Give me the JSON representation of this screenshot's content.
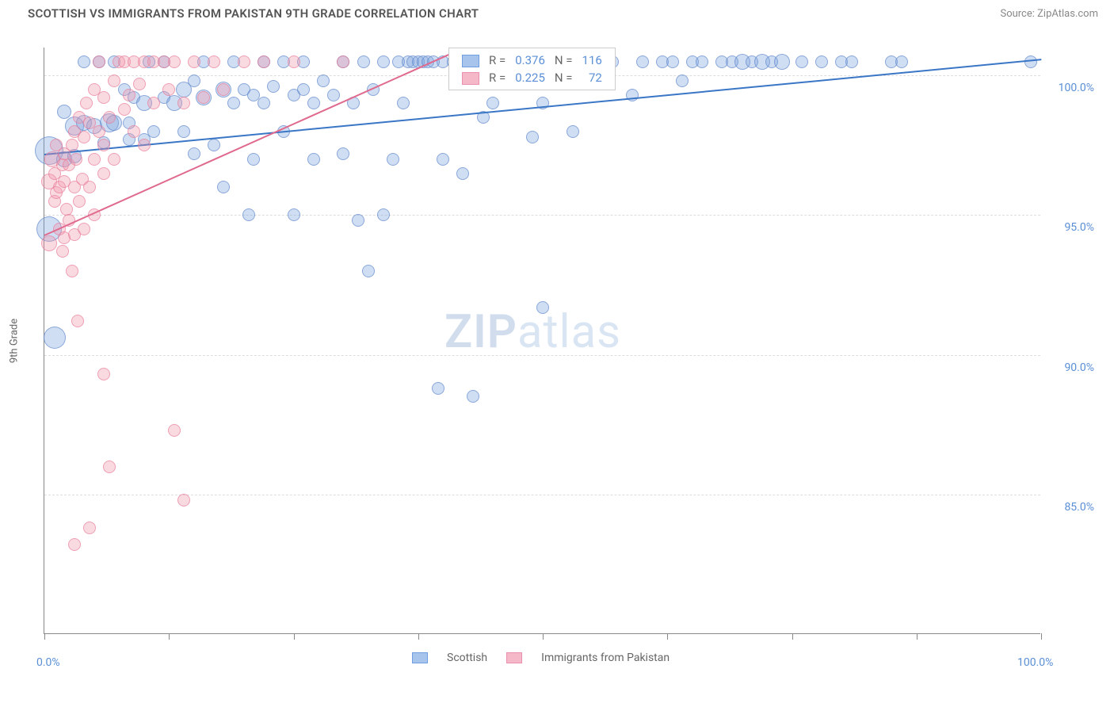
{
  "title": "SCOTTISH VS IMMIGRANTS FROM PAKISTAN 9TH GRADE CORRELATION CHART",
  "source_label": "Source: ZipAtlas.com",
  "watermark_zip": "ZIP",
  "watermark_atlas": "atlas",
  "chart": {
    "type": "scatter",
    "y_label": "9th Grade",
    "x_range": [
      0,
      100
    ],
    "y_range": [
      80,
      101
    ],
    "background_color": "#ffffff",
    "grid_color": "#dddddd",
    "axis_color": "#888888",
    "tick_label_color": "#5b8fd6",
    "axis_label_color": "#666666",
    "y_ticks": [
      {
        "value": 85.0,
        "label": "85.0%"
      },
      {
        "value": 90.0,
        "label": "90.0%"
      },
      {
        "value": 95.0,
        "label": "95.0%"
      },
      {
        "value": 100.0,
        "label": "100.0%"
      }
    ],
    "x_ticks_major_positions": [
      0,
      12.5,
      25,
      37.5,
      50,
      62.5,
      75,
      87.5,
      100
    ],
    "x_tick_labels": [
      {
        "value": 0,
        "label": "0.0%"
      },
      {
        "value": 100,
        "label": "100.0%"
      }
    ],
    "series": [
      {
        "name": "Scottish",
        "color_fill": "rgba(120,160,220,0.35)",
        "color_stroke": "rgba(90,130,200,0.6)",
        "legend_fill": "#a7c4ec",
        "legend_stroke": "#6f9fe0",
        "trend_color": "#3a76c6",
        "trend": {
          "x1": 0,
          "y1": 97.2,
          "x2": 100,
          "y2": 100.6
        },
        "stats": {
          "R_label": "R =",
          "R": "0.376",
          "N_label": "N =",
          "N": "116"
        },
        "points": [
          {
            "x": 0.5,
            "y": 97.3,
            "r": 18
          },
          {
            "x": 0.5,
            "y": 94.5,
            "r": 16
          },
          {
            "x": 1.0,
            "y": 90.6,
            "r": 14
          },
          {
            "x": 2,
            "y": 97.0,
            "r": 10
          },
          {
            "x": 2,
            "y": 98.7,
            "r": 9
          },
          {
            "x": 3,
            "y": 97.1,
            "r": 9
          },
          {
            "x": 3,
            "y": 98.2,
            "r": 12
          },
          {
            "x": 4,
            "y": 98.3,
            "r": 10
          },
          {
            "x": 4,
            "y": 100.5,
            "r": 8
          },
          {
            "x": 5,
            "y": 98.2,
            "r": 10
          },
          {
            "x": 5.5,
            "y": 100.5,
            "r": 8
          },
          {
            "x": 6,
            "y": 97.6,
            "r": 8
          },
          {
            "x": 6.5,
            "y": 98.3,
            "r": 12
          },
          {
            "x": 7,
            "y": 98.3,
            "r": 10
          },
          {
            "x": 7,
            "y": 100.5,
            "r": 8
          },
          {
            "x": 8,
            "y": 99.5,
            "r": 8
          },
          {
            "x": 8.5,
            "y": 97.7,
            "r": 8
          },
          {
            "x": 8.5,
            "y": 98.3,
            "r": 8
          },
          {
            "x": 9,
            "y": 99.2,
            "r": 8
          },
          {
            "x": 10,
            "y": 99.0,
            "r": 10
          },
          {
            "x": 10,
            "y": 97.7,
            "r": 8
          },
          {
            "x": 10.5,
            "y": 100.5,
            "r": 8
          },
          {
            "x": 11,
            "y": 98.0,
            "r": 8
          },
          {
            "x": 12,
            "y": 99.2,
            "r": 8
          },
          {
            "x": 12,
            "y": 100.5,
            "r": 8
          },
          {
            "x": 13,
            "y": 99.0,
            "r": 10
          },
          {
            "x": 14,
            "y": 99.5,
            "r": 10
          },
          {
            "x": 14,
            "y": 98.0,
            "r": 8
          },
          {
            "x": 15,
            "y": 99.8,
            "r": 8
          },
          {
            "x": 15,
            "y": 97.2,
            "r": 8
          },
          {
            "x": 16,
            "y": 99.2,
            "r": 10
          },
          {
            "x": 16,
            "y": 100.5,
            "r": 8
          },
          {
            "x": 17,
            "y": 97.5,
            "r": 8
          },
          {
            "x": 18,
            "y": 99.5,
            "r": 10
          },
          {
            "x": 18,
            "y": 96.0,
            "r": 8
          },
          {
            "x": 19,
            "y": 99.0,
            "r": 8
          },
          {
            "x": 19,
            "y": 100.5,
            "r": 8
          },
          {
            "x": 20,
            "y": 99.5,
            "r": 8
          },
          {
            "x": 20.5,
            "y": 95.0,
            "r": 8
          },
          {
            "x": 21,
            "y": 97.0,
            "r": 8
          },
          {
            "x": 21,
            "y": 99.3,
            "r": 8
          },
          {
            "x": 22,
            "y": 100.5,
            "r": 8
          },
          {
            "x": 22,
            "y": 99.0,
            "r": 8
          },
          {
            "x": 23,
            "y": 99.6,
            "r": 8
          },
          {
            "x": 24,
            "y": 100.5,
            "r": 8
          },
          {
            "x": 24,
            "y": 98.0,
            "r": 8
          },
          {
            "x": 25,
            "y": 99.3,
            "r": 8
          },
          {
            "x": 25,
            "y": 95.0,
            "r": 8
          },
          {
            "x": 26,
            "y": 99.5,
            "r": 8
          },
          {
            "x": 26,
            "y": 100.5,
            "r": 8
          },
          {
            "x": 27,
            "y": 99.0,
            "r": 8
          },
          {
            "x": 27,
            "y": 97.0,
            "r": 8
          },
          {
            "x": 28,
            "y": 99.8,
            "r": 8
          },
          {
            "x": 29,
            "y": 99.3,
            "r": 8
          },
          {
            "x": 30,
            "y": 97.2,
            "r": 8
          },
          {
            "x": 30,
            "y": 100.5,
            "r": 8
          },
          {
            "x": 31,
            "y": 99.0,
            "r": 8
          },
          {
            "x": 31.5,
            "y": 94.8,
            "r": 8
          },
          {
            "x": 32,
            "y": 100.5,
            "r": 8
          },
          {
            "x": 32.5,
            "y": 93.0,
            "r": 8
          },
          {
            "x": 33,
            "y": 99.5,
            "r": 8
          },
          {
            "x": 34,
            "y": 95.0,
            "r": 8
          },
          {
            "x": 34,
            "y": 100.5,
            "r": 8
          },
          {
            "x": 35,
            "y": 97.0,
            "r": 8
          },
          {
            "x": 35.5,
            "y": 100.5,
            "r": 8
          },
          {
            "x": 36,
            "y": 99.0,
            "r": 8
          },
          {
            "x": 36.5,
            "y": 100.5,
            "r": 8
          },
          {
            "x": 37,
            "y": 100.5,
            "r": 8
          },
          {
            "x": 37.5,
            "y": 100.5,
            "r": 8
          },
          {
            "x": 38,
            "y": 100.5,
            "r": 8
          },
          {
            "x": 38.5,
            "y": 100.5,
            "r": 8
          },
          {
            "x": 39,
            "y": 100.5,
            "r": 8
          },
          {
            "x": 39.5,
            "y": 88.8,
            "r": 8
          },
          {
            "x": 40,
            "y": 100.5,
            "r": 8
          },
          {
            "x": 40,
            "y": 97.0,
            "r": 8
          },
          {
            "x": 41,
            "y": 100.5,
            "r": 8
          },
          {
            "x": 42,
            "y": 96.5,
            "r": 8
          },
          {
            "x": 43,
            "y": 100.5,
            "r": 8
          },
          {
            "x": 43,
            "y": 88.5,
            "r": 8
          },
          {
            "x": 44,
            "y": 98.5,
            "r": 8
          },
          {
            "x": 45,
            "y": 99.0,
            "r": 8
          },
          {
            "x": 46,
            "y": 100.5,
            "r": 8
          },
          {
            "x": 47,
            "y": 100.5,
            "r": 8
          },
          {
            "x": 48,
            "y": 100.5,
            "r": 8
          },
          {
            "x": 49,
            "y": 97.8,
            "r": 8
          },
          {
            "x": 50,
            "y": 91.7,
            "r": 8
          },
          {
            "x": 50,
            "y": 99.0,
            "r": 8
          },
          {
            "x": 51,
            "y": 100.5,
            "r": 8
          },
          {
            "x": 53,
            "y": 98.0,
            "r": 8
          },
          {
            "x": 53,
            "y": 100.5,
            "r": 8
          },
          {
            "x": 55,
            "y": 100.5,
            "r": 8
          },
          {
            "x": 56,
            "y": 100.5,
            "r": 8
          },
          {
            "x": 57,
            "y": 100.5,
            "r": 8
          },
          {
            "x": 59,
            "y": 99.3,
            "r": 8
          },
          {
            "x": 60,
            "y": 100.5,
            "r": 8
          },
          {
            "x": 62,
            "y": 100.5,
            "r": 8
          },
          {
            "x": 63,
            "y": 100.5,
            "r": 8
          },
          {
            "x": 64,
            "y": 99.8,
            "r": 8
          },
          {
            "x": 65,
            "y": 100.5,
            "r": 8
          },
          {
            "x": 66,
            "y": 100.5,
            "r": 8
          },
          {
            "x": 68,
            "y": 100.5,
            "r": 8
          },
          {
            "x": 69,
            "y": 100.5,
            "r": 8
          },
          {
            "x": 70,
            "y": 100.5,
            "r": 10
          },
          {
            "x": 71,
            "y": 100.5,
            "r": 8
          },
          {
            "x": 72,
            "y": 100.5,
            "r": 10
          },
          {
            "x": 73,
            "y": 100.5,
            "r": 8
          },
          {
            "x": 74,
            "y": 100.5,
            "r": 10
          },
          {
            "x": 76,
            "y": 100.5,
            "r": 8
          },
          {
            "x": 78,
            "y": 100.5,
            "r": 8
          },
          {
            "x": 80,
            "y": 100.5,
            "r": 8
          },
          {
            "x": 81,
            "y": 100.5,
            "r": 8
          },
          {
            "x": 85,
            "y": 100.5,
            "r": 8
          },
          {
            "x": 86,
            "y": 100.5,
            "r": 8
          },
          {
            "x": 99,
            "y": 100.5,
            "r": 8
          }
        ]
      },
      {
        "name": "Immigrants from Pakistan",
        "color_fill": "rgba(240,150,170,0.35)",
        "color_stroke": "rgba(230,120,150,0.6)",
        "legend_fill": "#f5b8c9",
        "legend_stroke": "#ea8fae",
        "trend_color": "#e06a8e",
        "trend": {
          "x1": 0,
          "y1": 94.3,
          "x2": 42,
          "y2": 101
        },
        "stats": {
          "R_label": "R =",
          "R": "0.225",
          "N_label": "N =",
          "N": "72"
        },
        "points": [
          {
            "x": 0.5,
            "y": 96.2,
            "r": 10
          },
          {
            "x": 0.5,
            "y": 94.0,
            "r": 10
          },
          {
            "x": 0.8,
            "y": 97.0,
            "r": 10
          },
          {
            "x": 1,
            "y": 96.5,
            "r": 8
          },
          {
            "x": 1,
            "y": 95.5,
            "r": 8
          },
          {
            "x": 1.2,
            "y": 95.8,
            "r": 8
          },
          {
            "x": 1.2,
            "y": 97.5,
            "r": 8
          },
          {
            "x": 1.5,
            "y": 96.0,
            "r": 8
          },
          {
            "x": 1.5,
            "y": 94.5,
            "r": 8
          },
          {
            "x": 1.8,
            "y": 96.8,
            "r": 8
          },
          {
            "x": 1.8,
            "y": 93.7,
            "r": 8
          },
          {
            "x": 2,
            "y": 96.2,
            "r": 8
          },
          {
            "x": 2,
            "y": 97.2,
            "r": 8
          },
          {
            "x": 2,
            "y": 94.2,
            "r": 8
          },
          {
            "x": 2.2,
            "y": 95.2,
            "r": 8
          },
          {
            "x": 2.5,
            "y": 96.8,
            "r": 8
          },
          {
            "x": 2.5,
            "y": 94.8,
            "r": 8
          },
          {
            "x": 2.8,
            "y": 97.5,
            "r": 8
          },
          {
            "x": 2.8,
            "y": 93.0,
            "r": 8
          },
          {
            "x": 3,
            "y": 98.0,
            "r": 8
          },
          {
            "x": 3,
            "y": 96.0,
            "r": 8
          },
          {
            "x": 3,
            "y": 94.3,
            "r": 8
          },
          {
            "x": 3,
            "y": 83.2,
            "r": 8
          },
          {
            "x": 3.2,
            "y": 97.0,
            "r": 8
          },
          {
            "x": 3.3,
            "y": 91.2,
            "r": 8
          },
          {
            "x": 3.5,
            "y": 95.5,
            "r": 8
          },
          {
            "x": 3.5,
            "y": 98.5,
            "r": 8
          },
          {
            "x": 3.8,
            "y": 96.3,
            "r": 8
          },
          {
            "x": 4,
            "y": 97.8,
            "r": 8
          },
          {
            "x": 4,
            "y": 94.5,
            "r": 8
          },
          {
            "x": 4.2,
            "y": 99.0,
            "r": 8
          },
          {
            "x": 4.5,
            "y": 96.0,
            "r": 8
          },
          {
            "x": 4.5,
            "y": 98.3,
            "r": 8
          },
          {
            "x": 4.5,
            "y": 83.8,
            "r": 8
          },
          {
            "x": 5,
            "y": 97.0,
            "r": 8
          },
          {
            "x": 5,
            "y": 99.5,
            "r": 8
          },
          {
            "x": 5,
            "y": 95.0,
            "r": 8
          },
          {
            "x": 5.5,
            "y": 98.0,
            "r": 8
          },
          {
            "x": 5.5,
            "y": 100.5,
            "r": 8
          },
          {
            "x": 6,
            "y": 96.5,
            "r": 8
          },
          {
            "x": 6,
            "y": 99.2,
            "r": 8
          },
          {
            "x": 6,
            "y": 97.5,
            "r": 8
          },
          {
            "x": 6,
            "y": 89.3,
            "r": 8
          },
          {
            "x": 6.5,
            "y": 86.0,
            "r": 8
          },
          {
            "x": 6.5,
            "y": 98.5,
            "r": 8
          },
          {
            "x": 7,
            "y": 99.8,
            "r": 8
          },
          {
            "x": 7,
            "y": 97.0,
            "r": 8
          },
          {
            "x": 7.5,
            "y": 100.5,
            "r": 8
          },
          {
            "x": 8,
            "y": 98.8,
            "r": 8
          },
          {
            "x": 8,
            "y": 100.5,
            "r": 8
          },
          {
            "x": 8.5,
            "y": 99.3,
            "r": 8
          },
          {
            "x": 9,
            "y": 100.5,
            "r": 8
          },
          {
            "x": 9,
            "y": 98.0,
            "r": 8
          },
          {
            "x": 9.5,
            "y": 99.7,
            "r": 8
          },
          {
            "x": 10,
            "y": 100.5,
            "r": 8
          },
          {
            "x": 10,
            "y": 97.5,
            "r": 8
          },
          {
            "x": 11,
            "y": 100.5,
            "r": 8
          },
          {
            "x": 11,
            "y": 99.0,
            "r": 8
          },
          {
            "x": 12,
            "y": 100.5,
            "r": 8
          },
          {
            "x": 12.5,
            "y": 99.5,
            "r": 8
          },
          {
            "x": 13,
            "y": 87.3,
            "r": 8
          },
          {
            "x": 13,
            "y": 100.5,
            "r": 8
          },
          {
            "x": 14,
            "y": 99.0,
            "r": 8
          },
          {
            "x": 14,
            "y": 84.8,
            "r": 8
          },
          {
            "x": 15,
            "y": 100.5,
            "r": 8
          },
          {
            "x": 16,
            "y": 99.2,
            "r": 8
          },
          {
            "x": 17,
            "y": 100.5,
            "r": 8
          },
          {
            "x": 18,
            "y": 99.5,
            "r": 8
          },
          {
            "x": 20,
            "y": 100.5,
            "r": 8
          },
          {
            "x": 22,
            "y": 100.5,
            "r": 8
          },
          {
            "x": 25,
            "y": 100.5,
            "r": 8
          },
          {
            "x": 30,
            "y": 100.5,
            "r": 8
          }
        ]
      }
    ]
  },
  "series_legend_label_1": "Scottish",
  "series_legend_label_2": "Immigrants from Pakistan"
}
